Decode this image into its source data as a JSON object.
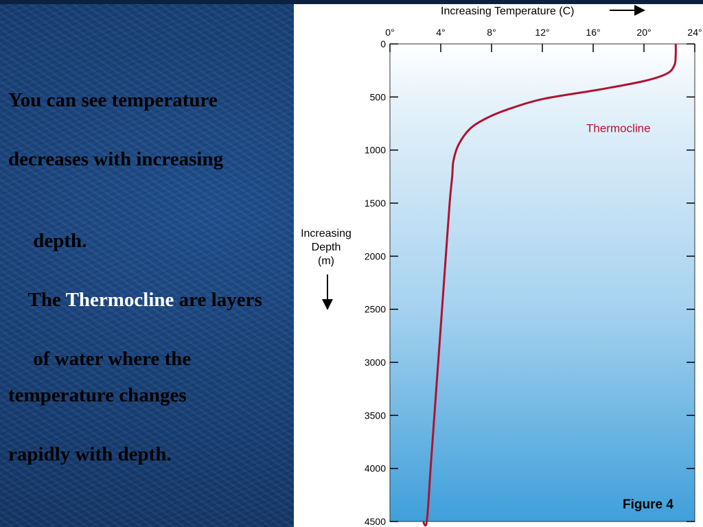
{
  "slide": {
    "lines": [
      {
        "parts": [
          {
            "text": "You can see temperature",
            "highlight": false
          }
        ]
      },
      {
        "parts": [
          {
            "text": "decreases with increasing",
            "highlight": false
          }
        ]
      },
      {
        "parts": [
          {
            "text": " depth.",
            "highlight": false
          }
        ]
      },
      {
        "parts": [
          {
            "text": "The ",
            "highlight": false
          },
          {
            "text": "Thermocline",
            "highlight": true
          },
          {
            "text": " are layers",
            "highlight": false
          }
        ]
      },
      {
        "parts": [
          {
            "text": " of water where the",
            "highlight": false
          }
        ]
      },
      {
        "parts": [
          {
            "text": "temperature changes",
            "highlight": false
          }
        ]
      },
      {
        "parts": [
          {
            "text": "rapidly with depth.",
            "highlight": false
          }
        ]
      }
    ],
    "colors": {
      "background": "#173f76",
      "text": "#000000",
      "highlight": "#ffffff"
    }
  },
  "chart_data": {
    "type": "line",
    "xlabel": "Increasing Temperature (C)",
    "ylabel_lines": [
      "Increasing",
      "Depth",
      "(m)"
    ],
    "x_ticks": [
      0,
      4,
      8,
      12,
      16,
      20,
      24
    ],
    "x_tick_labels": [
      "0°",
      "4°",
      "8°",
      "12°",
      "16°",
      "20°",
      "24°"
    ],
    "y_ticks": [
      0,
      500,
      1000,
      1500,
      2000,
      2500,
      3000,
      3500,
      4000,
      4500
    ],
    "y_tick_labels": [
      "0",
      "500",
      "1000",
      "1500",
      "2000",
      "2500",
      "3000",
      "3500",
      "4000",
      "4500"
    ],
    "xlim": [
      0,
      24
    ],
    "ylim": [
      0,
      4500
    ],
    "y_inverted": true,
    "series": [
      {
        "x": [
          22.5,
          22.5,
          22.4,
          21.8,
          20,
          16.5,
          12,
          9.2,
          7.6,
          6.3,
          5.4,
          5.0,
          4.9,
          4.7,
          4.4,
          4.1,
          3.8,
          3.5,
          3.2,
          2.9,
          2.6
        ],
        "y": [
          0,
          100,
          200,
          280,
          350,
          430,
          520,
          620,
          700,
          800,
          950,
          1100,
          1250,
          1500,
          2000,
          2500,
          3000,
          3500,
          4000,
          4500,
          4500
        ],
        "color": "#b0122f"
      }
    ],
    "annotations": [
      {
        "text": "Thermocline",
        "x": 16,
        "y": 830,
        "color": "#b0122f"
      }
    ],
    "figure_label": "Figure 4",
    "background_gradient": [
      "#ffffff",
      "#e2eff9",
      "#3f9fda"
    ]
  }
}
